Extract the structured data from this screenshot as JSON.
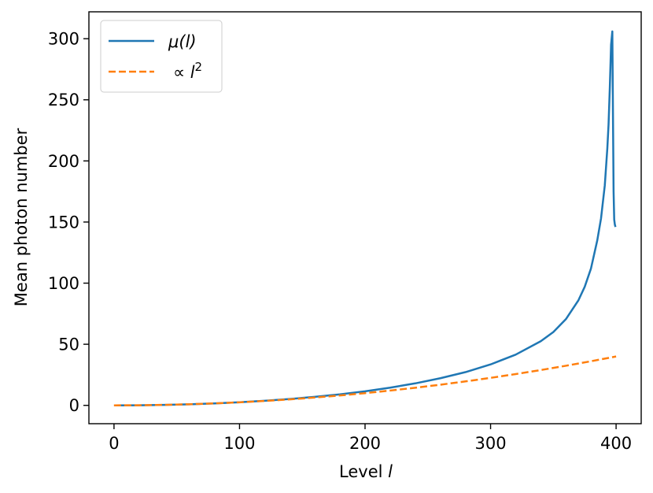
{
  "chart_data": {
    "type": "line",
    "xlabel": "Level",
    "xlabel_var": "l",
    "ylabel": "Mean photon number",
    "xlim": [
      -20,
      420
    ],
    "ylim": [
      -15,
      322
    ],
    "xticks": [
      0,
      100,
      200,
      300,
      400
    ],
    "yticks": [
      0,
      50,
      100,
      150,
      200,
      250,
      300
    ],
    "grid": false,
    "legend_position": "top-left",
    "series": [
      {
        "name": "μ(l)",
        "legend_symbol": "μ",
        "legend_arg": "(l)",
        "style": "solid",
        "color": "#1f77b4",
        "x": [
          0,
          20,
          40,
          60,
          80,
          100,
          120,
          140,
          160,
          180,
          200,
          220,
          240,
          260,
          280,
          300,
          320,
          340,
          350,
          360,
          370,
          375,
          380,
          385,
          388,
          391,
          393,
          394,
          395,
          396,
          397,
          397.5,
          398,
          398.5,
          399,
          399.5
        ],
        "y": [
          0,
          0.1,
          0.4,
          0.9,
          1.6,
          2.6,
          3.8,
          5.2,
          7.0,
          9.0,
          11.5,
          14.5,
          18.0,
          22.2,
          27.2,
          33.5,
          41.5,
          52.5,
          60,
          70.5,
          86,
          97,
          112,
          135,
          153,
          180,
          210,
          230,
          260,
          295,
          306,
          240,
          175,
          152,
          148,
          146
        ]
      },
      {
        "name": "∝ l²",
        "legend_symbol": "∝",
        "legend_arg": "l",
        "legend_sup": "2",
        "style": "dashed",
        "color": "#ff7f0e",
        "x": [
          0,
          20,
          40,
          60,
          80,
          100,
          120,
          140,
          160,
          180,
          200,
          220,
          240,
          260,
          280,
          300,
          320,
          340,
          360,
          380,
          400
        ],
        "y": [
          0,
          0.1,
          0.4,
          0.9,
          1.6,
          2.5,
          3.6,
          4.9,
          6.4,
          8.1,
          10.0,
          12.1,
          14.4,
          16.9,
          19.6,
          22.5,
          25.6,
          28.9,
          32.4,
          36.1,
          40.0
        ]
      }
    ]
  }
}
